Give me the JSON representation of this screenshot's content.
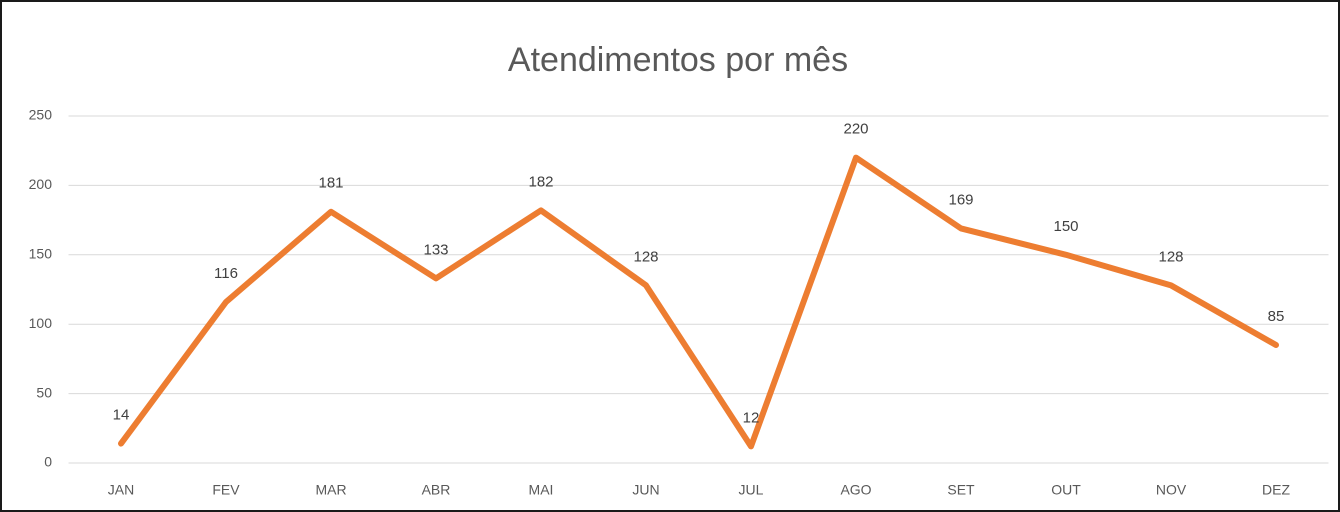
{
  "chart_data": {
    "type": "line",
    "title": "Atendimentos por mês",
    "categories": [
      "JAN",
      "FEV",
      "MAR",
      "ABR",
      "MAI",
      "JUN",
      "JUL",
      "AGO",
      "SET",
      "OUT",
      "NOV",
      "DEZ"
    ],
    "values": [
      14,
      116,
      181,
      133,
      182,
      128,
      12,
      220,
      169,
      150,
      128,
      85
    ],
    "color": "#ed7d31",
    "ylim": [
      0,
      250
    ],
    "yticks": [
      0,
      50,
      100,
      150,
      200,
      250
    ],
    "grid": true
  }
}
